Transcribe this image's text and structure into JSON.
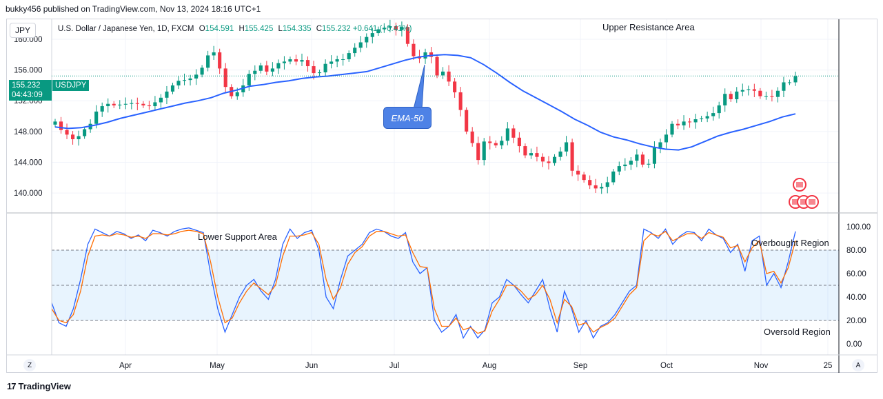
{
  "header": {
    "text": "bukky456 published on TradingView.com, Nov 13, 2024 18:16 UTC+1"
  },
  "currency_button": "JPY",
  "legend": {
    "symbol": "U.S. Dollar / Japanese Yen, 1D, FXCM",
    "o_label": "O",
    "o": "154.591",
    "h_label": "H",
    "h": "155.425",
    "l_label": "L",
    "l": "154.335",
    "c_label": "C",
    "c": "155.232",
    "change": "+0.641 (+0.41%)"
  },
  "price_badge": {
    "price": "155.232",
    "countdown": "04:43:09",
    "symbol": "USDJPY"
  },
  "annotations": {
    "upper_resistance": "Upper Resistance Area",
    "lower_support": "Lower Support Area",
    "overbought": "Overbought Region",
    "oversold": "Oversold Region",
    "ema": "EMA-50"
  },
  "buttons": {
    "z": "Z",
    "a": "A"
  },
  "footer": {
    "brand": "TradingView",
    "logo_mark": "17"
  },
  "colors": {
    "up": "#089981",
    "down": "#f23645",
    "ema": "#2962ff",
    "stoch_k": "#2962ff",
    "stoch_d": "#ff6d00",
    "band_fill": "#2196f3"
  },
  "chart_data": [
    {
      "type": "candlestick",
      "title": "",
      "y_ticks": [
        "160.000",
        "156.000",
        "152.000",
        "148.000",
        "144.000",
        "140.000"
      ],
      "ylim": [
        137.5,
        162.6
      ],
      "x_ticks": [
        "Apr",
        "May",
        "Jun",
        "Jul",
        "Aug",
        "Sep",
        "Oct",
        "Nov",
        "25"
      ],
      "grid": true,
      "last_price": 155.232,
      "closes_approx": [
        149.3,
        148.2,
        147.6,
        147.0,
        147.4,
        148.3,
        149.0,
        150.6,
        151.3,
        151.6,
        151.4,
        151.5,
        151.6,
        151.7,
        151.6,
        151.4,
        151.3,
        151.8,
        152.4,
        153.2,
        154.0,
        154.6,
        154.7,
        154.9,
        155.4,
        156.3,
        157.9,
        158.3,
        156.2,
        153.8,
        152.6,
        153.1,
        154.0,
        155.5,
        155.9,
        156.6,
        155.8,
        156.2,
        156.9,
        157.1,
        157.4,
        157.1,
        157.3,
        156.5,
        155.6,
        155.7,
        156.8,
        157.1,
        157.4,
        157.4,
        158.2,
        158.9,
        159.6,
        160.3,
        160.8,
        161.3,
        161.5,
        161.7,
        161.2,
        161.6,
        159.4,
        157.8,
        157.5,
        158.3,
        157.7,
        155.3,
        155.8,
        154.5,
        153.1,
        150.8,
        148.0,
        146.5,
        144.3,
        146.7,
        146.5,
        146.2,
        146.8,
        148.4,
        147.2,
        146.1,
        144.9,
        145.2,
        144.7,
        144.1,
        143.9,
        144.7,
        145.4,
        146.6,
        142.9,
        142.4,
        141.7,
        141.0,
        140.6,
        140.8,
        141.4,
        142.8,
        143.5,
        143.7,
        144.2,
        145.0,
        143.7,
        143.8,
        145.9,
        146.6,
        147.6,
        149.0,
        148.8,
        149.3,
        149.2,
        149.6,
        149.7,
        150.0,
        150.4,
        151.4,
        152.9,
        152.2,
        153.2,
        153.4,
        153.5,
        153.3,
        152.6,
        152.6,
        152.5,
        153.3,
        154.4,
        154.4,
        155.2
      ],
      "ema50_approx": [
        148.6,
        148.4,
        148.5,
        148.8,
        149.2,
        149.7,
        150.1,
        150.5,
        150.9,
        151.3,
        151.7,
        152.0,
        152.4,
        153.0,
        153.4,
        153.9,
        154.1,
        154.4,
        154.6,
        154.9,
        155.1,
        155.2,
        155.4,
        155.6,
        155.8,
        156.3,
        156.8,
        157.3,
        157.7,
        157.9,
        158.0,
        157.9,
        157.6,
        156.7,
        155.6,
        154.4,
        153.3,
        152.4,
        151.5,
        150.6,
        149.6,
        148.8,
        147.9,
        147.3,
        146.9,
        146.4,
        146.0,
        145.7,
        145.6,
        146.0,
        146.7,
        147.4,
        147.9,
        148.3,
        148.8,
        149.3,
        149.9,
        150.3
      ],
      "series": [
        {
          "name": "EMA-50",
          "kind": "line"
        }
      ]
    },
    {
      "type": "line",
      "title": "",
      "y_ticks": [
        "100.00",
        "80.00",
        "60.00",
        "40.00",
        "20.00",
        "0.00"
      ],
      "ylim": [
        0,
        100
      ],
      "band": [
        20,
        80
      ],
      "series": [
        {
          "name": "",
          "values": [
            35,
            18,
            15,
            30,
            55,
            85,
            98,
            95,
            92,
            96,
            94,
            90,
            93,
            88,
            97,
            95,
            92,
            96,
            98,
            99,
            97,
            95,
            60,
            30,
            10,
            25,
            40,
            50,
            55,
            45,
            38,
            55,
            85,
            98,
            90,
            95,
            97,
            80,
            40,
            30,
            55,
            75,
            80,
            85,
            95,
            98,
            96,
            92,
            90,
            95,
            70,
            60,
            65,
            20,
            10,
            15,
            25,
            5,
            15,
            5,
            12,
            35,
            40,
            55,
            50,
            42,
            35,
            45,
            55,
            30,
            10,
            45,
            30,
            10,
            20,
            5,
            15,
            18,
            25,
            35,
            45,
            50,
            98,
            95,
            90,
            98,
            85,
            92,
            96,
            95,
            88,
            98,
            93,
            90,
            78,
            85,
            62,
            88,
            92,
            50,
            60,
            48,
            70,
            96
          ]
        },
        {
          "name": "",
          "values": [
            30,
            20,
            18,
            25,
            45,
            75,
            92,
            93,
            92,
            94,
            93,
            91,
            92,
            90,
            94,
            94,
            93,
            94,
            96,
            97,
            96,
            94,
            70,
            40,
            18,
            22,
            35,
            45,
            52,
            47,
            42,
            50,
            75,
            92,
            92,
            93,
            95,
            85,
            55,
            38,
            48,
            68,
            78,
            83,
            92,
            96,
            96,
            94,
            92,
            93,
            78,
            66,
            65,
            30,
            15,
            15,
            22,
            12,
            14,
            9,
            11,
            28,
            38,
            50,
            50,
            45,
            38,
            42,
            50,
            38,
            18,
            38,
            32,
            16,
            18,
            10,
            14,
            17,
            22,
            32,
            42,
            48,
            88,
            94,
            92,
            96,
            88,
            91,
            94,
            94,
            90,
            95,
            93,
            91,
            82,
            84,
            70,
            82,
            88,
            60,
            62,
            52,
            65,
            88
          ]
        }
      ]
    }
  ]
}
